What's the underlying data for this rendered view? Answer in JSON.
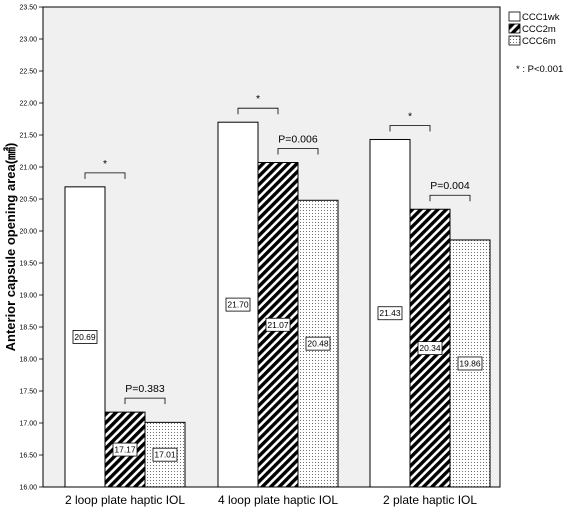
{
  "chart_data": {
    "type": "bar",
    "title": "",
    "xlabel": "",
    "ylabel": "Anterior capsule opening area(㎟)",
    "ylim": [
      16.0,
      23.5
    ],
    "y_ticks": [
      "16.00",
      "16.50",
      "17.00",
      "17.50",
      "18.00",
      "18.50",
      "19.00",
      "19.50",
      "20.00",
      "20.50",
      "21.00",
      "21.50",
      "22.00",
      "22.50",
      "23.00",
      "23.50"
    ],
    "categories": [
      "2 loop plate haptic IOL",
      "4 loop plate haptic IOL",
      "2 plate haptic IOL"
    ],
    "series": [
      {
        "name": "CCC1wk",
        "pattern": "solid-white",
        "values": [
          20.69,
          21.7,
          21.43
        ],
        "labels": [
          "20.69",
          "21.70",
          "21.43"
        ]
      },
      {
        "name": "CCC2m",
        "pattern": "diagonal-hatch",
        "values": [
          17.17,
          21.07,
          20.34
        ],
        "labels": [
          "17.17",
          "21.07",
          "20.34"
        ]
      },
      {
        "name": "CCC6m",
        "pattern": "dotted",
        "values": [
          17.01,
          20.48,
          19.86
        ],
        "labels": [
          "17.01",
          "20.48",
          "19.86"
        ]
      }
    ],
    "legend_position": "top-right",
    "annotations": {
      "significance_note": "* : P<0.001",
      "brackets": [
        {
          "group": 0,
          "between": [
            "CCC1wk",
            "CCC2m"
          ],
          "label": "*"
        },
        {
          "group": 0,
          "between": [
            "CCC2m",
            "CCC6m"
          ],
          "label": "P=0.383"
        },
        {
          "group": 1,
          "between": [
            "CCC1wk",
            "CCC2m"
          ],
          "label": "*"
        },
        {
          "group": 1,
          "between": [
            "CCC2m",
            "CCC6m"
          ],
          "label": "P=0.006"
        },
        {
          "group": 2,
          "between": [
            "CCC1wk",
            "CCC2m"
          ],
          "label": "*"
        },
        {
          "group": 2,
          "between": [
            "CCC2m",
            "CCC6m"
          ],
          "label": "P=0.004"
        }
      ]
    },
    "colors": {
      "plot_background": "#f0f0f0",
      "bar_fill": "#ffffff",
      "stroke": "#000000"
    }
  }
}
